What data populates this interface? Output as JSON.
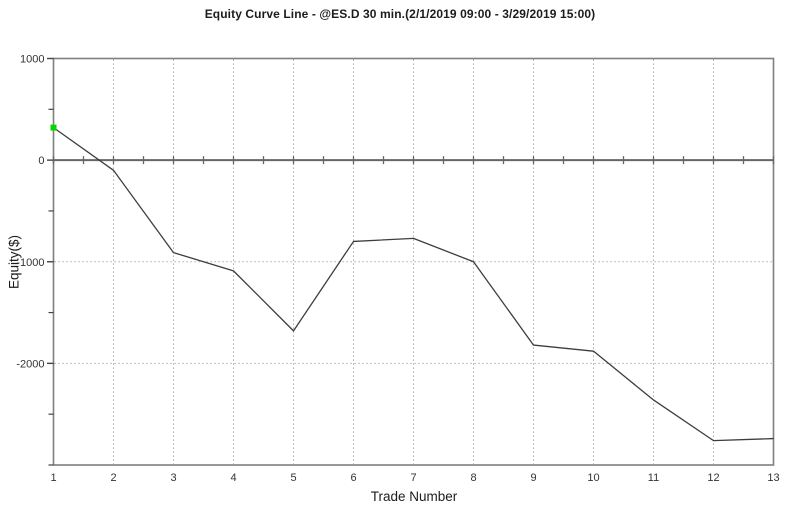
{
  "title": "Equity Curve Line - @ES.D 30 min.(2/1/2019 09:00 - 3/29/2019 15:00)",
  "axes": {
    "x_label": "Trade Number",
    "y_label": "Equity($)"
  },
  "chart_data": {
    "type": "line",
    "title": "Equity Curve Line - @ES.D 30 min.(2/1/2019 09:00 - 3/29/2019 15:00)",
    "xlabel": "Trade Number",
    "ylabel": "Equity($)",
    "x": [
      1,
      2,
      3,
      4,
      5,
      6,
      7,
      8,
      9,
      10,
      11,
      12,
      13
    ],
    "series": [
      {
        "name": "Equity",
        "values": [
          320,
          -100,
          -910,
          -1090,
          -1680,
          -800,
          -770,
          -1000,
          -1820,
          -1880,
          -2360,
          -2760,
          -2740
        ]
      }
    ],
    "xlim": [
      1,
      13
    ],
    "ylim": [
      -3000,
      1000
    ],
    "x_tick_labels": [
      "1",
      "2",
      "3",
      "4",
      "5",
      "6",
      "7",
      "8",
      "9",
      "10",
      "11",
      "12",
      "13"
    ],
    "y_tick_values": [
      1000,
      0,
      -1000,
      -2000
    ],
    "y_tick_labels": [
      "1000",
      "0",
      "-1000",
      "-2000"
    ],
    "y_minor_tick_values": [
      500,
      -500,
      -1500,
      -2500,
      -3000
    ],
    "grid": {
      "vertical_at_x": [
        2,
        3,
        4,
        5,
        6,
        7,
        8,
        9,
        10,
        11,
        12
      ],
      "horizontal_at_y": [
        -1000,
        -2000
      ],
      "style": "dotted"
    },
    "zero_line": true,
    "legend": "none"
  },
  "colors": {
    "background": "#ffffff",
    "frame": "#7f7f7f",
    "grid": "#9a9a9a",
    "zero_line": "#666666",
    "line": "#3d3d3d",
    "first_point_marker": "#00d900",
    "tick_text": "#333333",
    "title_text": "#1c1c1c"
  }
}
